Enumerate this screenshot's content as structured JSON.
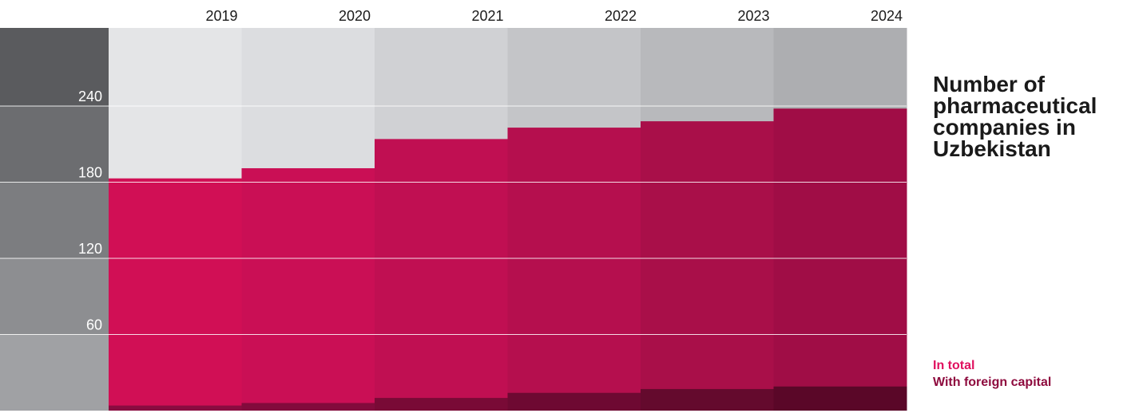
{
  "chart_data": {
    "type": "bar",
    "title": "Number of pharmaceutical companies in Uzbekistan",
    "categories": [
      "2019",
      "2020",
      "2021",
      "2022",
      "2023",
      "2024"
    ],
    "series": [
      {
        "name": "In total",
        "values": [
          183,
          191,
          214,
          223,
          228,
          238
        ]
      },
      {
        "name": "With foreign capital",
        "values": [
          4,
          6,
          10,
          14,
          17,
          19
        ]
      }
    ],
    "yticks": [
      60,
      120,
      180,
      240
    ],
    "ylim": [
      0,
      300
    ],
    "grid": true,
    "legend_position": "bottom-right",
    "colors": {
      "total": [
        "#d10f55",
        "#ca0f55",
        "#c00f52",
        "#b50f4e",
        "#a90f49",
        "#a00d46"
      ],
      "foreign": [
        "#8a0c40",
        "#820b3c",
        "#790a36",
        "#6e0932",
        "#640a2d",
        "#5a0728"
      ],
      "background": [
        "#e4e5e7",
        "#dcdde0",
        "#d0d1d4",
        "#c4c5c8",
        "#b8b9bc",
        "#adaeb1"
      ],
      "axis_bands": [
        "#5a5b5e",
        "#6c6d70",
        "#7c7d80",
        "#8d8e91",
        "#a0a1a4"
      ],
      "legend_total": "#e0115f",
      "legend_foreign": "#8e0b3e"
    }
  }
}
